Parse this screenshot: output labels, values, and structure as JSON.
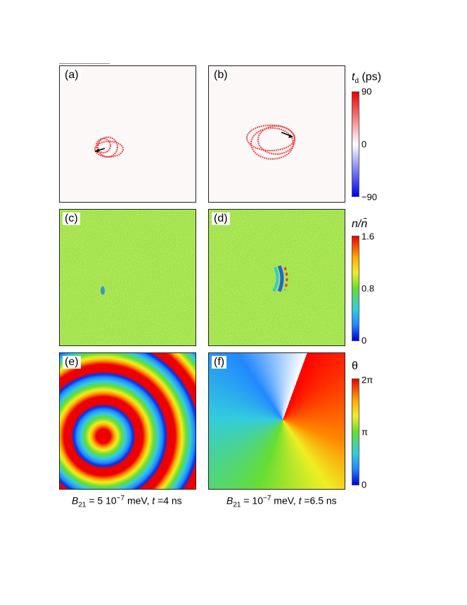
{
  "panels": [
    {
      "label": "(a)"
    },
    {
      "label": "(b)"
    },
    {
      "label": "(c)"
    },
    {
      "label": "(d)"
    },
    {
      "label": "(e)"
    },
    {
      "label": "(f)"
    }
  ],
  "colorbars": [
    {
      "title": {
        "main": "t",
        "sub": "d",
        "unit": " (ps)"
      },
      "ticks": [
        "90",
        "0",
        "−90"
      ]
    },
    {
      "title": {
        "main": "n/n̄"
      },
      "ticks": [
        "1.6",
        "0.8",
        "0"
      ]
    },
    {
      "title": {
        "main": "θ"
      },
      "ticks": [
        "2π",
        "π",
        "0"
      ]
    }
  ],
  "captions": [
    {
      "symbol": "B",
      "sub": "21",
      "eq": " = 5 10",
      "sup": "−7",
      "unit": " meV, ",
      "tsym": "t",
      "tval": " =4 ns"
    },
    {
      "symbol": "B",
      "sub": "21",
      "eq": " = 10",
      "sup": "−7",
      "unit": " meV, ",
      "tsym": "t",
      "tval": " =6.5 ns"
    }
  ]
}
